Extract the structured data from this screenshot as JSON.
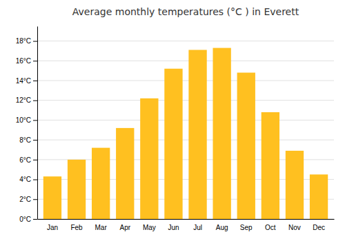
{
  "chart_data": {
    "type": "bar",
    "title": "Average monthly temperatures (°C ) in Everett",
    "categories": [
      "Jan",
      "Feb",
      "Mar",
      "Apr",
      "May",
      "Jun",
      "Jul",
      "Aug",
      "Sep",
      "Oct",
      "Nov",
      "Dec"
    ],
    "values": [
      4.3,
      6.0,
      7.2,
      9.2,
      12.2,
      15.2,
      17.1,
      17.3,
      14.8,
      10.8,
      6.9,
      4.5
    ],
    "color": "#FFC020",
    "ylim": [
      0,
      19.5
    ],
    "yticks": [
      {
        "value": 0,
        "label": "0°C"
      },
      {
        "value": 2,
        "label": "2°C"
      },
      {
        "value": 4,
        "label": "4°C"
      },
      {
        "value": 6,
        "label": "6°C"
      },
      {
        "value": 8,
        "label": "8°C"
      },
      {
        "value": 10,
        "label": "10°C"
      },
      {
        "value": 12,
        "label": "12°C"
      },
      {
        "value": 14,
        "label": "14°C"
      },
      {
        "value": 16,
        "label": "16°C"
      },
      {
        "value": 18,
        "label": "18°C"
      }
    ],
    "grid": true
  }
}
